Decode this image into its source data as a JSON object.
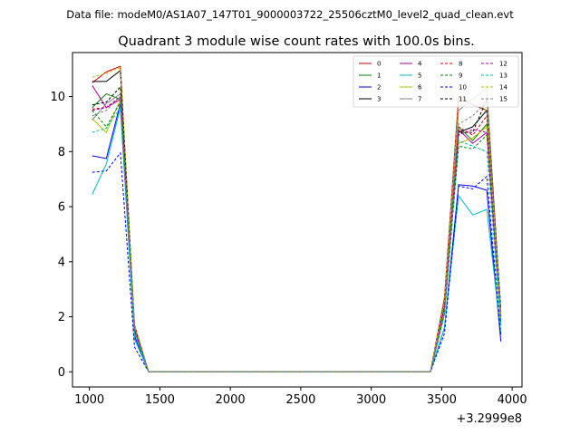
{
  "suptitle": "Data file: modeM0/AS1A07_147T01_9000003722_25506cztM0_level2_quad_clean.evt",
  "chart_data": {
    "type": "line",
    "title": "Quadrant 3 module wise count rates with 100.0s bins.",
    "xlabel": "",
    "ylabel": "",
    "x_offset_label": "+3.2999e8",
    "xlim": [
      880,
      4070
    ],
    "ylim": [
      -0.55,
      11.6
    ],
    "xticks": [
      1000,
      1500,
      2000,
      2500,
      3000,
      3500,
      4000
    ],
    "xtick_labels": [
      "1000",
      "1500",
      "2000",
      "2500",
      "3000",
      "3500",
      "4000"
    ],
    "yticks": [
      0,
      2,
      4,
      6,
      8,
      10
    ],
    "ytick_labels": [
      "0",
      "2",
      "4",
      "6",
      "8",
      "10"
    ],
    "grid": false,
    "legend_position": "top-right",
    "legend_columns": 4,
    "x": [
      1020,
      1120,
      1220,
      1320,
      1420,
      1520,
      1620,
      1720,
      1820,
      1920,
      2020,
      2120,
      2220,
      2320,
      2420,
      2520,
      2620,
      2720,
      2820,
      2920,
      3020,
      3120,
      3220,
      3320,
      3420,
      3520,
      3620,
      3720,
      3820,
      3920
    ],
    "series": [
      {
        "name": "0",
        "color": "#cc0000",
        "dash": false,
        "values": [
          10.5,
          10.9,
          11.1,
          1.7,
          0,
          0,
          0,
          0,
          0,
          0,
          0,
          0,
          0,
          0,
          0,
          0,
          0,
          0,
          0,
          0,
          0,
          0,
          0,
          0,
          0,
          2.7,
          10.0,
          9.7,
          9.5,
          2.0
        ]
      },
      {
        "name": "1",
        "color": "#008000",
        "dash": false,
        "values": [
          9.6,
          10.1,
          9.9,
          1.5,
          0,
          0,
          0,
          0,
          0,
          0,
          0,
          0,
          0,
          0,
          0,
          0,
          0,
          0,
          0,
          0,
          0,
          0,
          0,
          0,
          0,
          2.2,
          8.9,
          8.4,
          9.0,
          1.8
        ]
      },
      {
        "name": "2",
        "color": "#0000ee",
        "dash": false,
        "values": [
          7.85,
          7.75,
          9.75,
          1.3,
          0,
          0,
          0,
          0,
          0,
          0,
          0,
          0,
          0,
          0,
          0,
          0,
          0,
          0,
          0,
          0,
          0,
          0,
          0,
          0,
          0,
          1.6,
          6.8,
          6.75,
          6.6,
          1.1
        ]
      },
      {
        "name": "3",
        "color": "#000000",
        "dash": false,
        "values": [
          10.55,
          10.55,
          10.95,
          1.6,
          0,
          0,
          0,
          0,
          0,
          0,
          0,
          0,
          0,
          0,
          0,
          0,
          0,
          0,
          0,
          0,
          0,
          0,
          0,
          0,
          0,
          2.4,
          8.7,
          8.9,
          9.5,
          2.1
        ]
      },
      {
        "name": "4",
        "color": "#aa00aa",
        "dash": false,
        "values": [
          10.4,
          9.6,
          9.9,
          1.5,
          0,
          0,
          0,
          0,
          0,
          0,
          0,
          0,
          0,
          0,
          0,
          0,
          0,
          0,
          0,
          0,
          0,
          0,
          0,
          0,
          0,
          2.3,
          8.8,
          8.3,
          8.7,
          1.9
        ]
      },
      {
        "name": "5",
        "color": "#00bbbb",
        "dash": false,
        "values": [
          6.45,
          7.55,
          9.6,
          1.2,
          0,
          0,
          0,
          0,
          0,
          0,
          0,
          0,
          0,
          0,
          0,
          0,
          0,
          0,
          0,
          0,
          0,
          0,
          0,
          0,
          0,
          1.6,
          6.4,
          5.7,
          5.9,
          1.4
        ]
      },
      {
        "name": "6",
        "color": "#bbbb00",
        "dash": false,
        "values": [
          9.2,
          8.7,
          9.9,
          1.5,
          0,
          0,
          0,
          0,
          0,
          0,
          0,
          0,
          0,
          0,
          0,
          0,
          0,
          0,
          0,
          0,
          0,
          0,
          0,
          0,
          0,
          2.2,
          8.3,
          8.5,
          8.9,
          1.9
        ]
      },
      {
        "name": "7",
        "color": "#808080",
        "dash": false,
        "values": [
          9.15,
          9.75,
          10.1,
          1.6,
          0,
          0,
          0,
          0,
          0,
          0,
          0,
          0,
          0,
          0,
          0,
          0,
          0,
          0,
          0,
          0,
          0,
          0,
          0,
          0,
          0,
          2.4,
          9.5,
          9.9,
          10.3,
          2.2
        ]
      },
      {
        "name": "8",
        "color": "#cc0000",
        "dash": true,
        "values": [
          9.55,
          9.6,
          10.0,
          1.6,
          0,
          0,
          0,
          0,
          0,
          0,
          0,
          0,
          0,
          0,
          0,
          0,
          0,
          0,
          0,
          0,
          0,
          0,
          0,
          0,
          0,
          2.3,
          8.9,
          8.6,
          9.3,
          2.0
        ]
      },
      {
        "name": "9",
        "color": "#008000",
        "dash": true,
        "values": [
          9.5,
          8.9,
          9.8,
          1.5,
          0,
          0,
          0,
          0,
          0,
          0,
          0,
          0,
          0,
          0,
          0,
          0,
          0,
          0,
          0,
          0,
          0,
          0,
          0,
          0,
          0,
          2.1,
          8.2,
          8.1,
          8.6,
          1.7
        ]
      },
      {
        "name": "10",
        "color": "#0000ee",
        "dash": true,
        "values": [
          7.25,
          7.3,
          7.95,
          0.9,
          0,
          0,
          0,
          0,
          0,
          0,
          0,
          0,
          0,
          0,
          0,
          0,
          0,
          0,
          0,
          0,
          0,
          0,
          0,
          0,
          0,
          1.4,
          6.75,
          6.65,
          7.1,
          1.3
        ]
      },
      {
        "name": "11",
        "color": "#000000",
        "dash": true,
        "values": [
          9.7,
          9.8,
          10.35,
          1.7,
          0,
          0,
          0,
          0,
          0,
          0,
          0,
          0,
          0,
          0,
          0,
          0,
          0,
          0,
          0,
          0,
          0,
          0,
          0,
          0,
          0,
          2.5,
          8.7,
          8.7,
          9.9,
          2.3
        ]
      },
      {
        "name": "12",
        "color": "#aa00aa",
        "dash": true,
        "values": [
          9.5,
          9.6,
          10.0,
          1.5,
          0,
          0,
          0,
          0,
          0,
          0,
          0,
          0,
          0,
          0,
          0,
          0,
          0,
          0,
          0,
          0,
          0,
          0,
          0,
          0,
          0,
          2.3,
          8.6,
          8.8,
          8.7,
          1.9
        ]
      },
      {
        "name": "13",
        "color": "#00bbbb",
        "dash": true,
        "values": [
          8.7,
          8.85,
          9.6,
          1.4,
          0,
          0,
          0,
          0,
          0,
          0,
          0,
          0,
          0,
          0,
          0,
          0,
          0,
          0,
          0,
          0,
          0,
          0,
          0,
          0,
          0,
          2.1,
          8.4,
          8.2,
          8.0,
          1.7
        ]
      },
      {
        "name": "14",
        "color": "#bbbb00",
        "dash": true,
        "values": [
          10.7,
          10.85,
          11.05,
          1.7,
          0,
          0,
          0,
          0,
          0,
          0,
          0,
          0,
          0,
          0,
          0,
          0,
          0,
          0,
          0,
          0,
          0,
          0,
          0,
          0,
          0,
          2.6,
          9.8,
          9.9,
          9.5,
          2.0
        ]
      },
      {
        "name": "15",
        "color": "#808080",
        "dash": true,
        "values": [
          9.3,
          9.5,
          10.0,
          1.6,
          0,
          0,
          0,
          0,
          0,
          0,
          0,
          0,
          0,
          0,
          0,
          0,
          0,
          0,
          0,
          0,
          0,
          0,
          0,
          0,
          0,
          2.3,
          9.0,
          9.3,
          9.8,
          2.1
        ]
      }
    ]
  }
}
